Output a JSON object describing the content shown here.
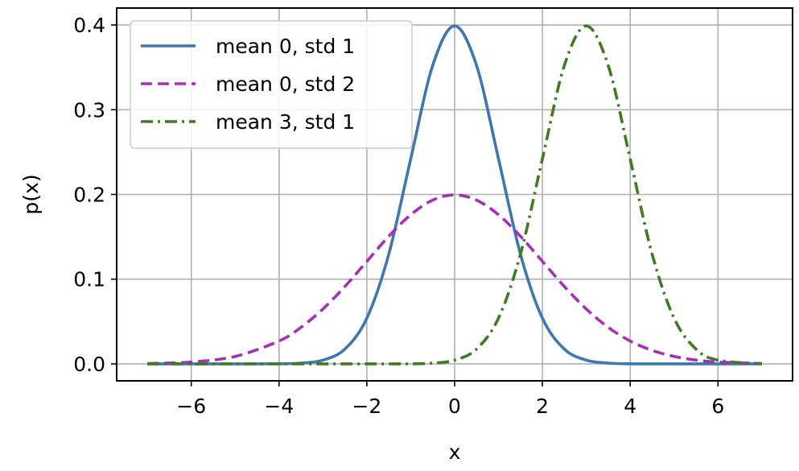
{
  "chart_data": {
    "type": "line",
    "title": "",
    "xlabel": "x",
    "ylabel": "p(x)",
    "xlim": [
      -7.7,
      7.7
    ],
    "ylim": [
      -0.02,
      0.42
    ],
    "xticks": [
      -6,
      -4,
      -2,
      0,
      2,
      4,
      6
    ],
    "xtick_labels": [
      "−6",
      "−4",
      "−2",
      "0",
      "2",
      "4",
      "6"
    ],
    "yticks": [
      0.0,
      0.1,
      0.2,
      0.3,
      0.4
    ],
    "ytick_labels": [
      "0.0",
      "0.1",
      "0.2",
      "0.3",
      "0.4"
    ],
    "grid": true,
    "legend_position": "top-left",
    "x": [
      -7,
      -6,
      -5,
      -4,
      -3.5,
      -3,
      -2.5,
      -2,
      -1.5,
      -1,
      -0.5,
      0,
      0.5,
      1,
      1.5,
      2,
      2.5,
      3,
      3.5,
      4,
      4.5,
      5,
      5.5,
      6,
      7
    ],
    "series": [
      {
        "name": "mean 0, std 1",
        "color": "#3e76b0",
        "style": "solid",
        "values": [
          0.0,
          0.0,
          0.0,
          0.0001,
          0.0009,
          0.0044,
          0.0175,
          0.054,
          0.1295,
          0.242,
          0.3521,
          0.3989,
          0.3521,
          0.242,
          0.1295,
          0.054,
          0.0175,
          0.0044,
          0.0009,
          0.0001,
          0.0,
          0.0,
          0.0,
          0.0,
          0.0
        ]
      },
      {
        "name": "mean 0, std 2",
        "color": "#a530b5",
        "style": "dashed",
        "values": [
          0.0004,
          0.0022,
          0.0088,
          0.027,
          0.0431,
          0.0648,
          0.0913,
          0.121,
          0.1506,
          0.176,
          0.1933,
          0.1995,
          0.1933,
          0.176,
          0.1506,
          0.121,
          0.0913,
          0.0648,
          0.0431,
          0.027,
          0.0159,
          0.0088,
          0.0045,
          0.0022,
          0.0004
        ]
      },
      {
        "name": "mean 3, std 1",
        "color": "#3f7a24",
        "style": "dashdot",
        "values": [
          0.0,
          0.0,
          0.0,
          0.0,
          0.0,
          0.0,
          0.0,
          0.0,
          0.0,
          0.0001,
          0.0009,
          0.0044,
          0.0175,
          0.054,
          0.1295,
          0.242,
          0.3521,
          0.3989,
          0.3521,
          0.242,
          0.1295,
          0.054,
          0.0175,
          0.0044,
          0.0001
        ]
      }
    ]
  }
}
